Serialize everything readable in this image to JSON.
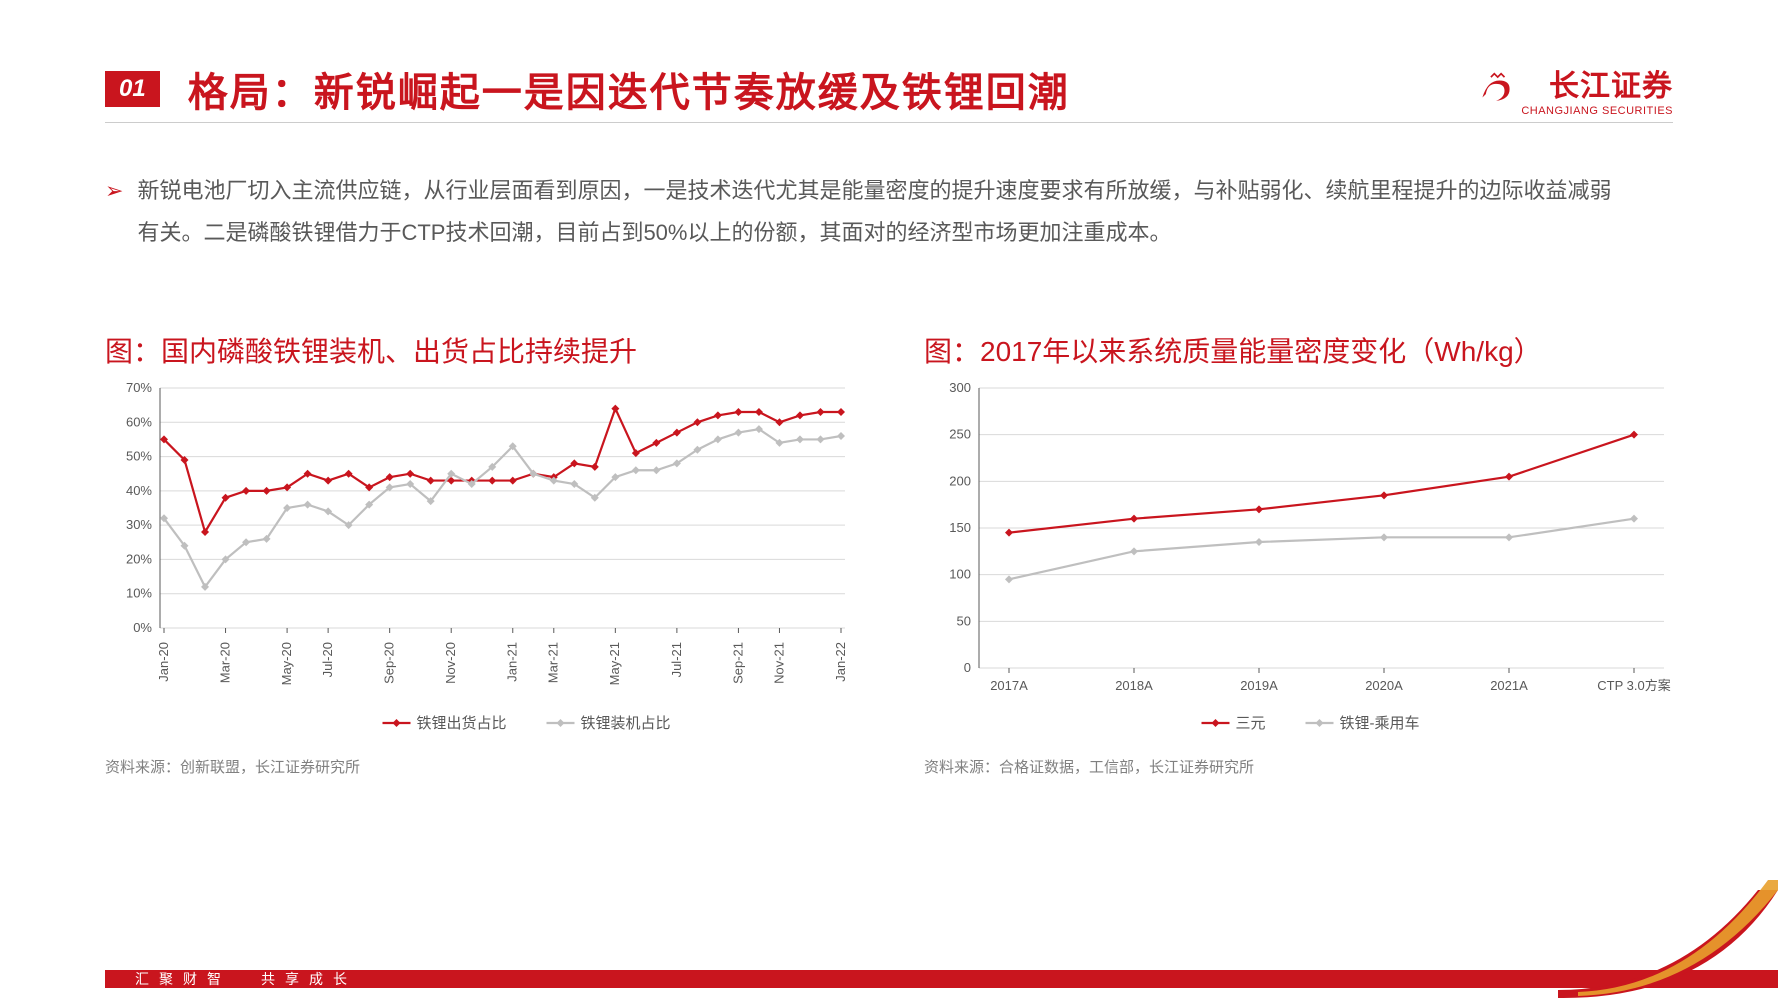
{
  "header": {
    "section_number": "01",
    "title": "格局：新锐崛起一是因迭代节奏放缓及铁锂回潮",
    "logo_cn": "长江证券",
    "logo_en": "CHANGJIANG SECURITIES"
  },
  "bullet": {
    "text": "新锐电池厂切入主流供应链，从行业层面看到原因，一是技术迭代尤其是能量密度的提升速度要求有所放缓，与补贴弱化、续航里程提升的边际收益减弱有关。二是磷酸铁锂借力于CTP技术回潮，目前占到50%以上的份额，其面对的经济型市场更加注重成本。"
  },
  "chart_left": {
    "title": "图：国内磷酸铁锂装机、出货占比持续提升",
    "source": "资料来源：创新联盟，长江证券研究所",
    "type": "line",
    "y_min": 0,
    "y_max": 70,
    "y_step": 10,
    "y_suffix": "%",
    "x_labels": [
      "Jan-20",
      "Mar-20",
      "May-20",
      "Jul-20",
      "Sep-20",
      "Nov-20",
      "Jan-21",
      "Mar-21",
      "May-21",
      "Jul-21",
      "Sep-21",
      "Nov-21",
      "Jan-22"
    ],
    "series": [
      {
        "name": "铁锂出货占比",
        "color": "#c9151e",
        "marker": "diamond",
        "values": [
          55,
          49,
          28,
          38,
          40,
          40,
          41,
          45,
          43,
          45,
          41,
          44,
          45,
          43,
          43,
          43,
          43,
          43,
          45,
          44,
          48,
          47,
          64,
          51,
          54,
          57,
          60,
          62,
          63,
          63,
          60,
          62,
          63,
          63
        ]
      },
      {
        "name": "铁锂装机占比",
        "color": "#bfbfbf",
        "marker": "diamond",
        "values": [
          32,
          24,
          12,
          20,
          25,
          26,
          35,
          36,
          34,
          30,
          36,
          41,
          42,
          37,
          45,
          42,
          47,
          53,
          45,
          43,
          42,
          38,
          44,
          46,
          46,
          48,
          52,
          55,
          57,
          58,
          54,
          55,
          55,
          56
        ]
      }
    ],
    "legend": [
      "铁锂出货占比",
      "铁锂装机占比"
    ],
    "grid_color": "#d9d9d9",
    "bg": "#ffffff"
  },
  "chart_right": {
    "title": "图：2017年以来系统质量能量密度变化（Wh/kg）",
    "source": "资料来源：合格证数据，工信部，长江证券研究所",
    "type": "line",
    "y_min": 0,
    "y_max": 300,
    "y_step": 50,
    "y_suffix": "",
    "x_labels": [
      "2017A",
      "2018A",
      "2019A",
      "2020A",
      "2021A",
      "CTP 3.0方案"
    ],
    "series": [
      {
        "name": "三元",
        "color": "#c9151e",
        "marker": "diamond",
        "values": [
          145,
          160,
          170,
          185,
          205,
          250
        ]
      },
      {
        "name": "铁锂-乘用车",
        "color": "#bfbfbf",
        "marker": "diamond",
        "values": [
          95,
          125,
          135,
          140,
          140,
          160
        ]
      }
    ],
    "legend": [
      "三元",
      "铁锂-乘用车"
    ],
    "grid_color": "#d9d9d9",
    "bg": "#ffffff"
  },
  "footer": {
    "slogan1": "汇聚财智",
    "slogan2": "共享成长"
  },
  "colors": {
    "brand": "#c9151e",
    "text": "#595959",
    "muted": "#808080",
    "grid": "#d9d9d9",
    "grey_series": "#bfbfbf"
  }
}
